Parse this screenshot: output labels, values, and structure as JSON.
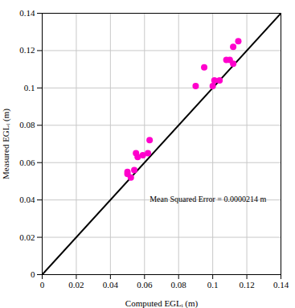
{
  "chart_data": {
    "type": "scatter",
    "xlabel": "Computed EGLᵢ (m)",
    "ylabel": "Measured EGLᵢ (m)",
    "series": [
      {
        "type": "scatter",
        "color": "#FF00CC",
        "marker": "circle",
        "x": [
          0.05,
          0.05,
          0.052,
          0.054,
          0.055,
          0.056,
          0.059,
          0.062,
          0.063,
          0.09,
          0.095,
          0.1,
          0.101,
          0.104,
          0.108,
          0.11,
          0.112,
          0.112,
          0.115
        ],
        "values": [
          0.054,
          0.055,
          0.052,
          0.056,
          0.065,
          0.063,
          0.064,
          0.065,
          0.072,
          0.101,
          0.111,
          0.101,
          0.104,
          0.104,
          0.115,
          0.115,
          0.113,
          0.122,
          0.125
        ]
      },
      {
        "type": "line",
        "color": "#000000",
        "line_style": "solid",
        "x": [
          0,
          0.14
        ],
        "values": [
          0,
          0.14
        ]
      }
    ],
    "xlim": [
      0,
      0.14
    ],
    "ylim": [
      0,
      0.14
    ],
    "xticks": [
      0,
      0.02,
      0.04,
      0.06,
      0.08,
      0.1,
      0.12,
      0.14
    ],
    "yticks": [
      0,
      0.02,
      0.04,
      0.06,
      0.08,
      0.1,
      0.12,
      0.14
    ],
    "grid": true,
    "annotations": [
      {
        "text": "Mean Squared Error = 0.0000214 m",
        "x": 0.063,
        "y": 0.039
      }
    ]
  }
}
